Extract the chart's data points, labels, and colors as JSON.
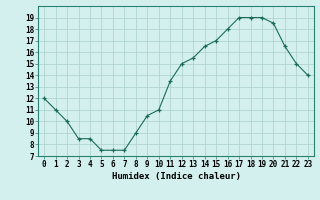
{
  "x": [
    0,
    1,
    2,
    3,
    4,
    5,
    6,
    7,
    8,
    9,
    10,
    11,
    12,
    13,
    14,
    15,
    16,
    17,
    18,
    19,
    20,
    21,
    22,
    23
  ],
  "y": [
    12,
    11,
    10,
    8.5,
    8.5,
    7.5,
    7.5,
    7.5,
    9,
    10.5,
    11,
    13.5,
    15,
    15.5,
    16.5,
    17,
    18,
    19,
    19,
    19,
    18.5,
    16.5,
    15,
    14
  ],
  "line_color": "#1a6b5a",
  "marker": "+",
  "bg_color": "#d4f0ee",
  "grid_color": "#aacfcc",
  "xlabel": "Humidex (Indice chaleur)",
  "xlim": [
    -0.5,
    23.5
  ],
  "ylim": [
    7,
    20
  ],
  "yticks": [
    7,
    8,
    9,
    10,
    11,
    12,
    13,
    14,
    15,
    16,
    17,
    18,
    19
  ],
  "xticks": [
    0,
    1,
    2,
    3,
    4,
    5,
    6,
    7,
    8,
    9,
    10,
    11,
    12,
    13,
    14,
    15,
    16,
    17,
    18,
    19,
    20,
    21,
    22,
    23
  ],
  "xtick_labels": [
    "0",
    "1",
    "2",
    "3",
    "4",
    "5",
    "6",
    "7",
    "8",
    "9",
    "10",
    "11",
    "12",
    "13",
    "14",
    "15",
    "16",
    "17",
    "18",
    "19",
    "20",
    "21",
    "22",
    "23"
  ],
  "tick_fontsize": 5.5,
  "label_fontsize": 6.5
}
